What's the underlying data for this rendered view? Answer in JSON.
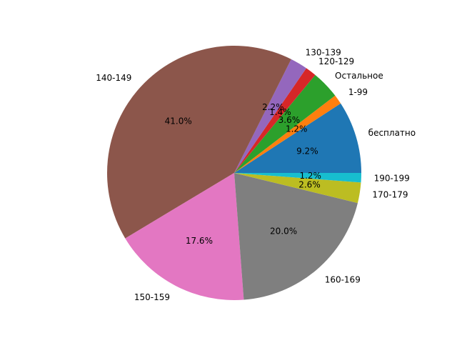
{
  "chart_data": {
    "type": "pie",
    "title": "",
    "start_angle_deg": 0,
    "direction": "counterclockwise",
    "slices": [
      {
        "label": "бесплатно",
        "value": 9.2,
        "pct_label": "9.2%",
        "color": "#1f77b4"
      },
      {
        "label": "1-99",
        "value": 1.2,
        "pct_label": "1.2%",
        "color": "#ff7f0e"
      },
      {
        "label": "Остальное",
        "value": 3.6,
        "pct_label": "3.6%",
        "color": "#2ca02c"
      },
      {
        "label": "120-129",
        "value": 1.4,
        "pct_label": "1.4%",
        "color": "#d62728"
      },
      {
        "label": "130-139",
        "value": 2.2,
        "pct_label": "2.2%",
        "color": "#9467bd"
      },
      {
        "label": "140-149",
        "value": 41.0,
        "pct_label": "41.0%",
        "color": "#8c564b"
      },
      {
        "label": "150-159",
        "value": 17.6,
        "pct_label": "17.6%",
        "color": "#e377c2"
      },
      {
        "label": "160-169",
        "value": 20.0,
        "pct_label": "20.0%",
        "color": "#7f7f7f"
      },
      {
        "label": "170-179",
        "value": 2.6,
        "pct_label": "2.6%",
        "color": "#bcbd22"
      },
      {
        "label": "190-199",
        "value": 1.2,
        "pct_label": "1.2%",
        "color": "#17becf"
      }
    ]
  }
}
